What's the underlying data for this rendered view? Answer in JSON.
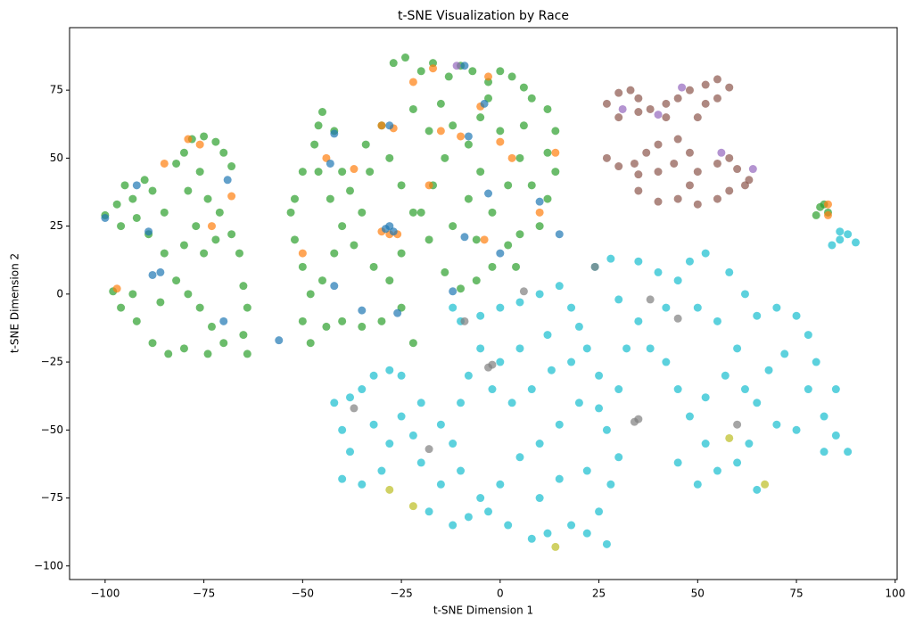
{
  "chart_data": {
    "type": "scatter",
    "title": "t-SNE Visualization by Race",
    "x_label": "t-SNE Dimension 1",
    "y_label": "t-SNE Dimension 2",
    "xlim": [
      -109,
      100.5
    ],
    "ylim": [
      -105,
      98
    ],
    "xticks": [
      {
        "value": -100,
        "label": "−100"
      },
      {
        "value": -75,
        "label": "−75"
      },
      {
        "value": -50,
        "label": "−50"
      },
      {
        "value": -25,
        "label": "−25"
      },
      0,
      25,
      50,
      75,
      100
    ],
    "yticks": [
      {
        "value": -100,
        "label": "−100"
      },
      {
        "value": -75,
        "label": "−75"
      },
      {
        "value": -50,
        "label": "−50"
      },
      {
        "value": -25,
        "label": "−25"
      },
      0,
      25,
      50,
      75
    ],
    "alpha": 0.7,
    "series": [
      {
        "color": "#2ca02c",
        "x": [
          -100,
          -97,
          -95,
          -93,
          -96,
          -90,
          -88,
          -85,
          -82,
          -80,
          -78,
          -75,
          -72,
          -70,
          -68,
          -76,
          -79,
          -74,
          -71,
          -77,
          -80,
          -75,
          -72,
          -68,
          -66,
          -65,
          -64,
          -65,
          -64,
          -70,
          -73,
          -76,
          -79,
          -74,
          -80,
          -84,
          -88,
          -92,
          -96,
          -98,
          -93,
          -86,
          -82,
          -85,
          -89,
          -92,
          -53,
          -52,
          -50,
          -48,
          -50,
          -48,
          -44,
          -40,
          -35,
          -30,
          -25,
          -22,
          -45,
          -42,
          -40,
          -43,
          -46,
          -47,
          -46,
          -45,
          -42,
          -40,
          -38,
          -35,
          -33,
          -34,
          -30,
          -37,
          -32,
          -28,
          -25,
          -22,
          -25,
          -28,
          -52,
          -50,
          -27,
          -24,
          -20,
          -17,
          -13,
          -10,
          -7,
          -3,
          0,
          3,
          6,
          8,
          12,
          14,
          12,
          14,
          12,
          10,
          5,
          2,
          -2,
          -6,
          -10,
          -14,
          -18,
          -20,
          -17,
          -14,
          -18,
          -22,
          -15,
          -12,
          -8,
          -5,
          -8,
          -2,
          2,
          5,
          0,
          -5,
          -3,
          6,
          8,
          -12,
          -6,
          4,
          81,
          83,
          82,
          80
        ],
        "values": [
          29,
          33,
          40,
          35,
          25,
          42,
          38,
          30,
          48,
          52,
          57,
          58,
          56,
          52,
          47,
          45,
          38,
          35,
          30,
          25,
          18,
          15,
          20,
          22,
          15,
          3,
          -5,
          -15,
          -22,
          -18,
          -12,
          -5,
          0,
          -22,
          -20,
          -22,
          -18,
          -10,
          -5,
          1,
          0,
          -3,
          5,
          15,
          22,
          28,
          30,
          20,
          10,
          0,
          -10,
          -18,
          -12,
          -10,
          -12,
          -10,
          -5,
          -18,
          5,
          15,
          25,
          35,
          45,
          55,
          62,
          67,
          60,
          45,
          38,
          30,
          45,
          55,
          62,
          18,
          10,
          5,
          15,
          30,
          40,
          50,
          35,
          45,
          85,
          87,
          82,
          85,
          80,
          84,
          82,
          78,
          82,
          80,
          76,
          72,
          68,
          60,
          52,
          45,
          35,
          25,
          22,
          18,
          10,
          5,
          2,
          8,
          20,
          30,
          40,
          50,
          60,
          68,
          70,
          62,
          55,
          45,
          35,
          30,
          40,
          50,
          60,
          65,
          72,
          62,
          40,
          25,
          20,
          10,
          32,
          30,
          33,
          29
        ]
      },
      {
        "color": "#17becf",
        "x": [
          -42,
          -38,
          -35,
          -32,
          -28,
          -25,
          -40,
          -38,
          -40,
          -35,
          -30,
          -28,
          -32,
          -25,
          -20,
          -22,
          -20,
          -15,
          -18,
          -12,
          -8,
          -5,
          -10,
          -12,
          -15,
          -10,
          -8,
          -5,
          -10,
          -12,
          -5,
          0,
          5,
          10,
          15,
          18,
          20,
          12,
          5,
          0,
          -2,
          3,
          8,
          13,
          18,
          22,
          25,
          20,
          15,
          10,
          5,
          0,
          -3,
          2,
          8,
          12,
          18,
          22,
          27,
          25,
          28,
          30,
          27,
          25,
          30,
          22,
          15,
          10,
          35,
          32,
          38,
          42,
          45,
          48,
          52,
          55,
          50,
          45,
          52,
          57,
          60,
          55,
          50,
          45,
          40,
          35,
          28,
          24,
          30,
          42,
          48,
          52,
          58,
          62,
          65,
          70,
          75,
          78,
          80,
          78,
          82,
          85,
          88,
          82,
          75,
          70,
          65,
          62,
          68,
          72,
          63,
          60,
          65,
          85,
          84,
          86,
          88,
          90,
          86
        ],
        "values": [
          -40,
          -38,
          -35,
          -30,
          -28,
          -30,
          -50,
          -58,
          -68,
          -70,
          -65,
          -55,
          -48,
          -45,
          -40,
          -52,
          -62,
          -70,
          -80,
          -85,
          -82,
          -75,
          -65,
          -55,
          -48,
          -40,
          -30,
          -20,
          -10,
          -5,
          -8,
          -5,
          -3,
          0,
          3,
          -5,
          -12,
          -15,
          -20,
          -25,
          -35,
          -40,
          -35,
          -28,
          -25,
          -20,
          -30,
          -40,
          -48,
          -55,
          -60,
          -70,
          -80,
          -85,
          -90,
          -88,
          -85,
          -88,
          -92,
          -80,
          -70,
          -60,
          -50,
          -42,
          -35,
          -65,
          -68,
          -75,
          -10,
          -20,
          -20,
          -25,
          -35,
          -45,
          -55,
          -65,
          -70,
          -62,
          -38,
          -30,
          -20,
          -10,
          -5,
          5,
          8,
          12,
          13,
          10,
          -2,
          -5,
          12,
          15,
          8,
          0,
          -8,
          -5,
          -8,
          -15,
          -25,
          -35,
          -45,
          -52,
          -58,
          -58,
          -50,
          -48,
          -40,
          -35,
          -28,
          -22,
          -55,
          -62,
          -72,
          -35,
          18,
          20,
          22,
          19,
          23
        ]
      },
      {
        "color": "#8c564b",
        "x": [
          27,
          30,
          33,
          35,
          38,
          42,
          45,
          48,
          52,
          55,
          58,
          55,
          52,
          50,
          42,
          35,
          30,
          27,
          30,
          34,
          37,
          40,
          45,
          48,
          44,
          40,
          35,
          50,
          55,
          58,
          60,
          63,
          62,
          58,
          55,
          50,
          45,
          40,
          35,
          48
        ],
        "values": [
          70,
          74,
          75,
          72,
          68,
          70,
          72,
          75,
          77,
          79,
          76,
          72,
          70,
          65,
          65,
          67,
          65,
          50,
          47,
          48,
          52,
          55,
          57,
          52,
          48,
          45,
          44,
          45,
          48,
          50,
          46,
          42,
          40,
          38,
          35,
          33,
          35,
          34,
          38,
          40
        ]
      },
      {
        "color": "#ff7f0e",
        "x": [
          -28,
          -30,
          -26,
          -44,
          -50,
          -30,
          -27,
          -22,
          -17,
          -10,
          -5,
          -3,
          -4,
          0,
          10,
          14,
          -18,
          -79,
          -76,
          -68,
          -85,
          -73,
          -97,
          83,
          83,
          -37,
          -15,
          3
        ],
        "values": [
          22,
          23,
          22,
          50,
          15,
          62,
          61,
          78,
          83,
          58,
          69,
          80,
          20,
          56,
          30,
          52,
          40,
          57,
          55,
          36,
          48,
          25,
          2,
          29,
          33,
          46,
          60,
          50
        ]
      },
      {
        "color": "#1f77b4",
        "x": [
          -28,
          -27,
          -29,
          -100,
          -89,
          -92,
          -86,
          -88,
          -69,
          -70,
          -56,
          -43,
          -42,
          -42,
          -28,
          -9,
          -9,
          -3,
          -4,
          0,
          10,
          15,
          -12,
          -35,
          -26,
          -8
        ],
        "values": [
          25,
          23,
          24,
          28,
          23,
          40,
          8,
          7,
          42,
          -10,
          -17,
          48,
          59,
          3,
          62,
          21,
          84,
          37,
          70,
          15,
          34,
          22,
          1,
          -6,
          -7,
          58
        ]
      },
      {
        "color": "#7f7f7f",
        "x": [
          34,
          35,
          -3,
          -2,
          38,
          24,
          -37,
          -18,
          6,
          45,
          60,
          -9
        ],
        "values": [
          -47,
          -46,
          -27,
          -26,
          -2,
          10,
          -42,
          -57,
          1,
          -9,
          -48,
          -10
        ]
      },
      {
        "color": "#bcbd22",
        "x": [
          14,
          -22,
          -28,
          67,
          58
        ],
        "values": [
          -93,
          -78,
          -72,
          -70,
          -53
        ]
      },
      {
        "color": "#9467bd",
        "x": [
          46,
          31,
          56,
          64,
          40,
          -11
        ],
        "values": [
          76,
          68,
          52,
          46,
          66,
          84
        ]
      }
    ]
  }
}
